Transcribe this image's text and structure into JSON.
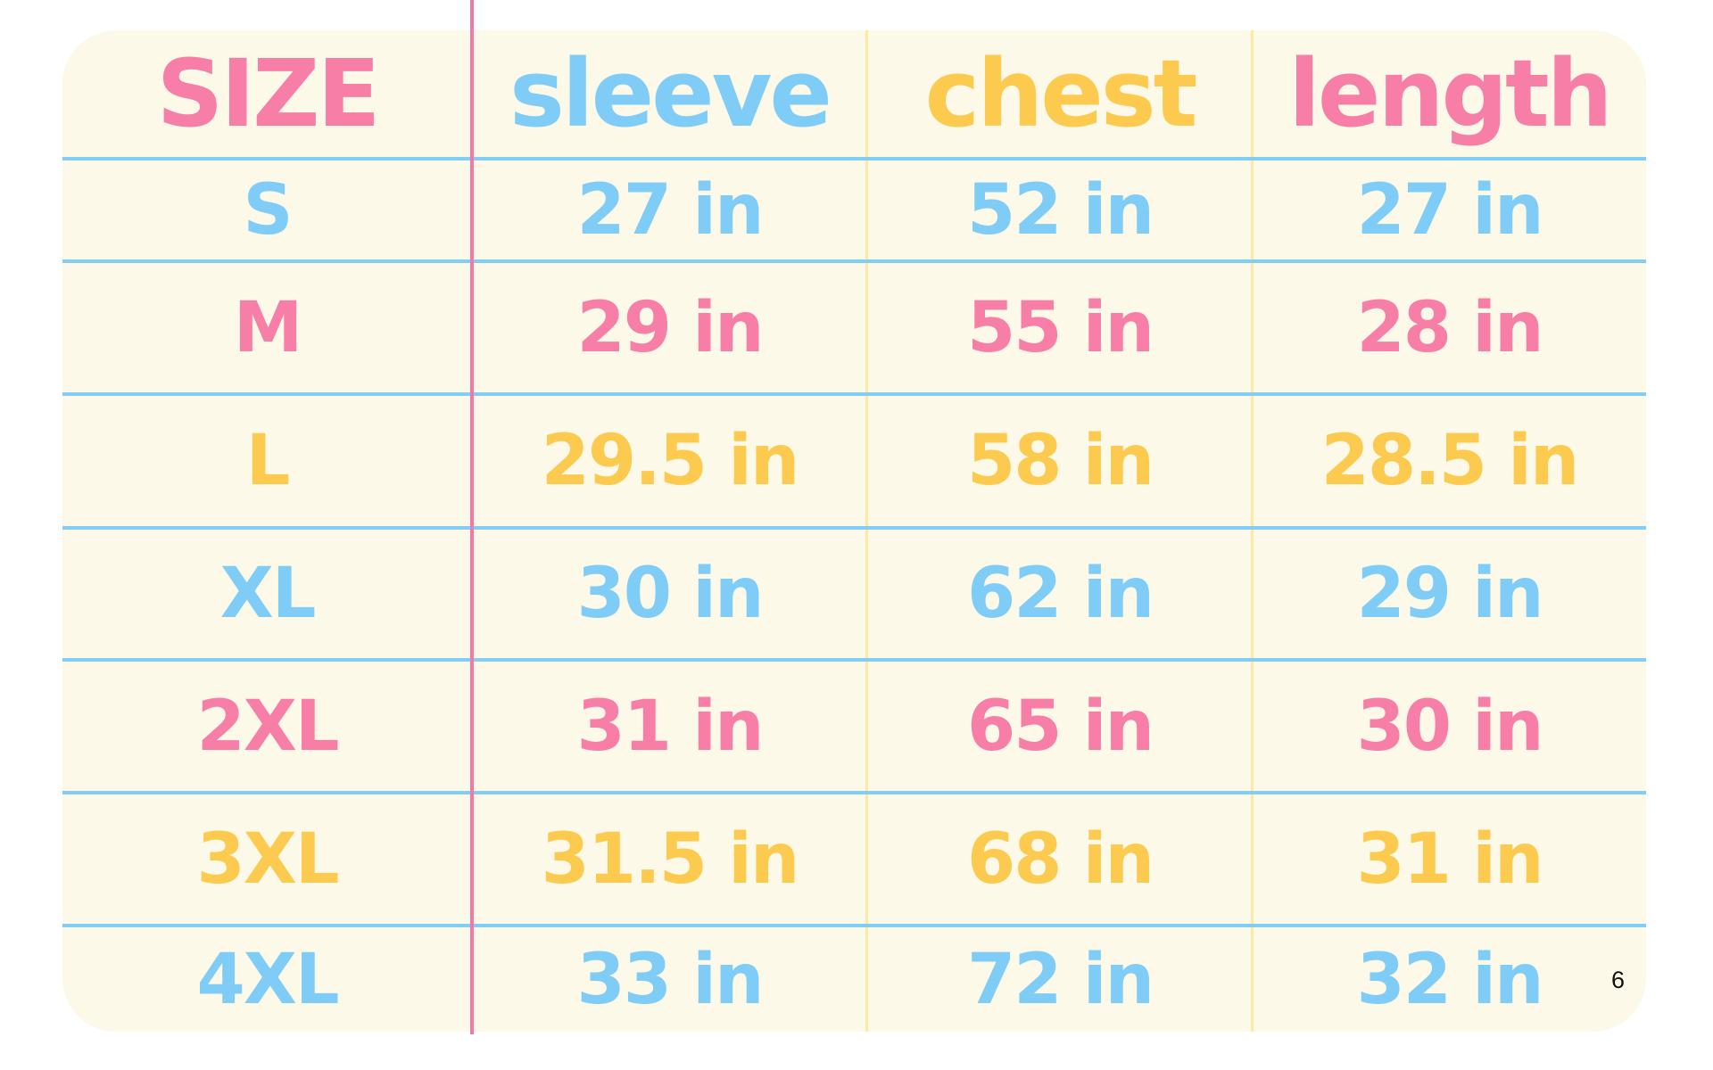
{
  "colors": {
    "pink": "#f77fa7",
    "blue": "#7fcdf7",
    "yellow": "#fcca4f",
    "background": "#fdf9e8"
  },
  "headers": [
    {
      "label": "SIZE",
      "color": "pink"
    },
    {
      "label": "sleeve",
      "color": "blue"
    },
    {
      "label": "chest",
      "color": "yellow"
    },
    {
      "label": "length",
      "color": "pink"
    }
  ],
  "rows": [
    {
      "size": "S",
      "sleeve": "27 in",
      "chest": "52 in",
      "length": "27 in",
      "color": "blue"
    },
    {
      "size": "M",
      "sleeve": "29 in",
      "chest": "55 in",
      "length": "28 in",
      "color": "pink"
    },
    {
      "size": "L",
      "sleeve": "29.5 in",
      "chest": "58 in",
      "length": "28.5 in",
      "color": "yellow"
    },
    {
      "size": "XL",
      "sleeve": "30 in",
      "chest": "62 in",
      "length": "29 in",
      "color": "blue"
    },
    {
      "size": "2XL",
      "sleeve": "31 in",
      "chest": "65 in",
      "length": "30 in",
      "color": "pink"
    },
    {
      "size": "3XL",
      "sleeve": "31.5 in",
      "chest": "68 in",
      "length": "31 in",
      "color": "yellow"
    },
    {
      "size": "4XL",
      "sleeve": "33 in",
      "chest": "72 in",
      "length": "32 in",
      "color": "blue"
    }
  ],
  "page_number": "6"
}
